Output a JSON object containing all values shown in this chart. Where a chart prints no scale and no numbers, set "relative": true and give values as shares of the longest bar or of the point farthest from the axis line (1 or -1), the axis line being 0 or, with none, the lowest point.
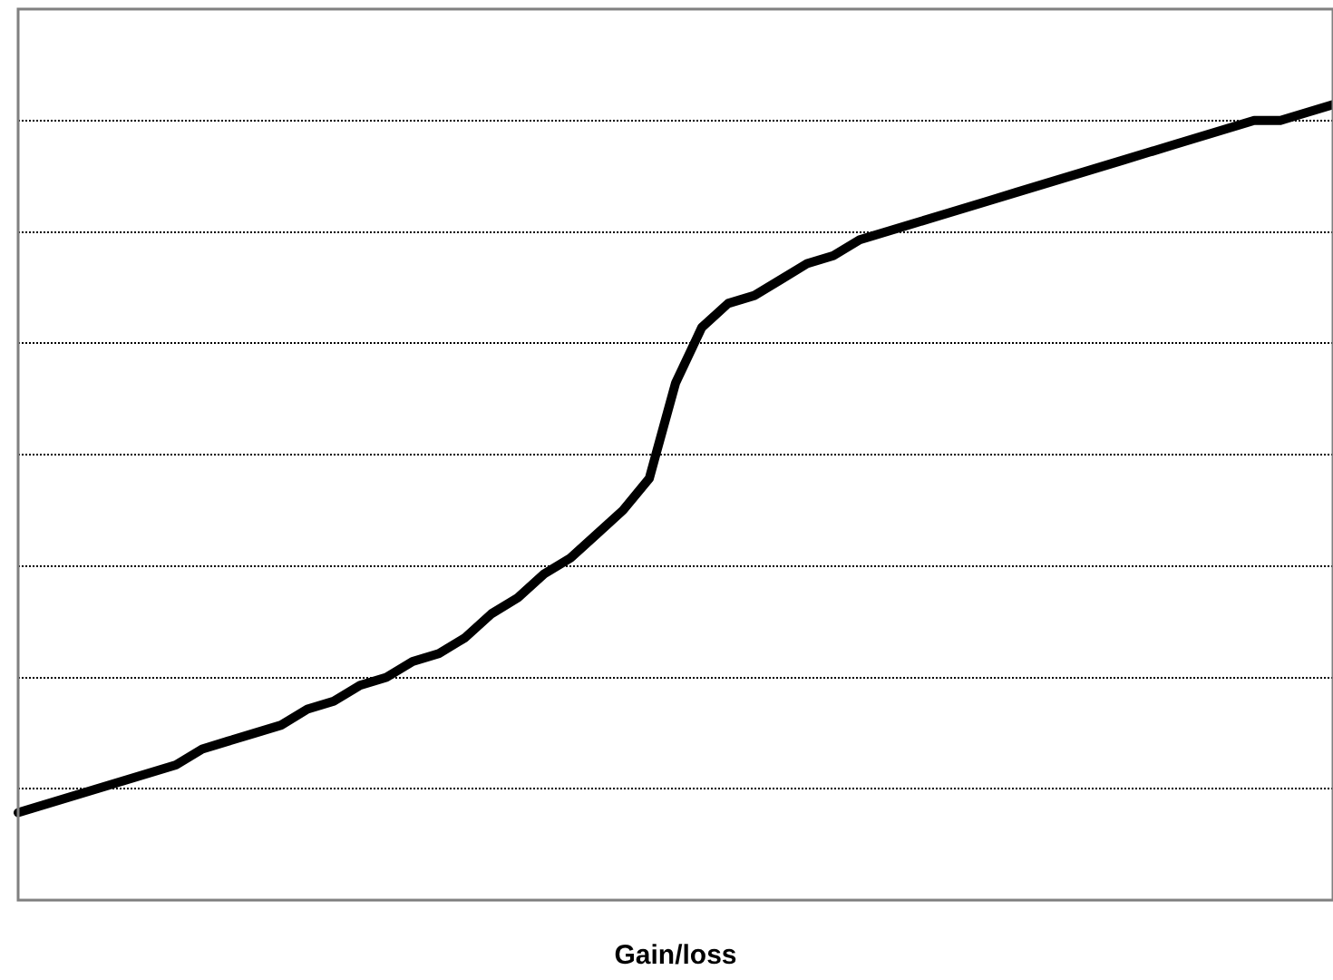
{
  "chart_data": {
    "type": "line",
    "xlabel": "Gain/loss",
    "relative": true,
    "grid": "y",
    "legend": false,
    "marker": "none",
    "line_style": "solid",
    "categories": [
      null,
      null,
      null,
      null,
      null,
      null,
      null,
      null,
      null,
      null,
      null,
      null,
      null,
      null,
      null,
      null,
      null,
      null,
      null,
      null,
      null,
      null,
      null,
      null,
      null,
      null,
      null,
      null,
      null,
      null,
      null,
      null,
      null,
      null,
      null,
      null,
      null,
      null,
      null,
      null,
      null,
      null,
      null,
      null,
      null,
      null,
      null,
      null,
      null,
      null,
      null
    ],
    "series": [
      {
        "color": "#000000",
        "values": [
          0.11,
          0.12,
          0.13,
          0.14,
          0.15,
          0.16,
          0.17,
          0.19,
          0.2,
          0.21,
          0.22,
          0.24,
          0.25,
          0.27,
          0.28,
          0.3,
          0.31,
          0.33,
          0.36,
          0.38,
          0.41,
          0.43,
          0.46,
          0.49,
          0.53,
          0.65,
          0.72,
          0.75,
          0.76,
          0.78,
          0.8,
          0.81,
          0.83,
          0.84,
          0.85,
          0.86,
          0.87,
          0.88,
          0.89,
          0.9,
          0.91,
          0.92,
          0.93,
          0.94,
          0.95,
          0.96,
          0.97,
          0.98,
          0.98,
          0.99,
          1
        ]
      }
    ]
  }
}
